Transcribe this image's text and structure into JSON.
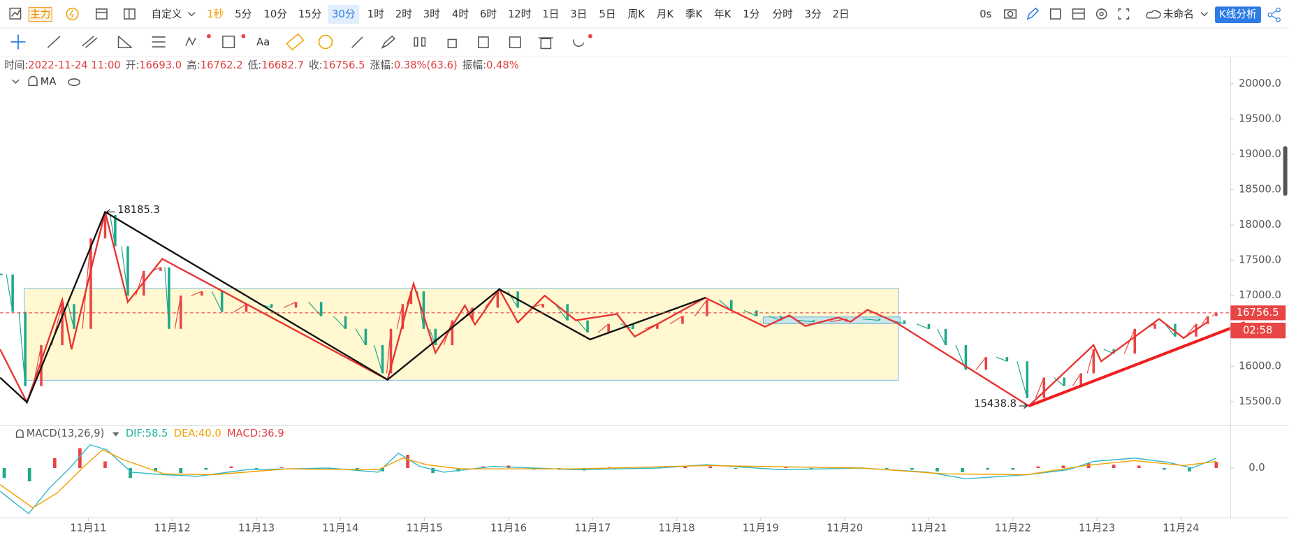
{
  "toolbar": {
    "main": "主力",
    "custom": "自定义",
    "intervals": [
      "1秒",
      "5分",
      "10分",
      "15分",
      "30分",
      "1时",
      "2时",
      "3时",
      "4时",
      "6时",
      "12时",
      "1日",
      "3日",
      "5日",
      "周K",
      "月K",
      "季K",
      "年K",
      "1分",
      "分时",
      "3分",
      "2日"
    ],
    "timer": "0s",
    "layout_name": "未命名",
    "analysis": "K线分析"
  },
  "drawing_toolbar": {
    "text_tool": "Aa"
  },
  "info": [
    {
      "label": "时间:",
      "value": "2022-11-24 11:00"
    },
    {
      "label": "开:",
      "value": "16693.0"
    },
    {
      "label": "高:",
      "value": "16762.2"
    },
    {
      "label": "低:",
      "value": "16682.7"
    },
    {
      "label": "收:",
      "value": "16756.5"
    },
    {
      "label": "涨幅:",
      "value": "0.38%(63.6)"
    },
    {
      "label": "振幅:",
      "value": "0.48%"
    }
  ],
  "indicator": "MA",
  "chart_data": [
    {
      "type": "candlestick",
      "up_color": "#e84545",
      "down_color": "#1fa88a",
      "xlim": [
        9.95,
        24.59
      ],
      "ylim": [
        15170,
        20370
      ],
      "xticks": [
        {
          "value": 11,
          "label": "11月11"
        },
        {
          "value": 12,
          "label": "11月12"
        },
        {
          "value": 13,
          "label": "11月13"
        },
        {
          "value": 14,
          "label": "11月14"
        },
        {
          "value": 15,
          "label": "11月15"
        },
        {
          "value": 16,
          "label": "11月16"
        },
        {
          "value": 17,
          "label": "11月17"
        },
        {
          "value": 18,
          "label": "11月18"
        },
        {
          "value": 19,
          "label": "11月19"
        },
        {
          "value": 20,
          "label": "11月20"
        },
        {
          "value": 21,
          "label": "11月21"
        },
        {
          "value": 22,
          "label": "11月22"
        },
        {
          "value": 23,
          "label": "11月23"
        },
        {
          "value": 24,
          "label": "11月24"
        }
      ],
      "yticks": [
        {
          "value": 15500,
          "label": "15500.0"
        },
        {
          "value": 16000,
          "label": "16000.0"
        },
        {
          "value": 16500,
          "label": "16500.0"
        },
        {
          "value": 17000,
          "label": "17000.0"
        },
        {
          "value": 17500,
          "label": "17500.0"
        },
        {
          "value": 18000,
          "label": "18000.0"
        },
        {
          "value": 18500,
          "label": "18500.0"
        },
        {
          "value": 19000,
          "label": "19000.0"
        },
        {
          "value": 19500,
          "label": "19500.0"
        },
        {
          "value": 20000,
          "label": "20000.0"
        }
      ],
      "x": [
        9.95,
        10.1,
        10.25,
        10.44,
        10.69,
        10.83,
        11.03,
        11.2,
        11.32,
        11.47,
        11.66,
        11.86,
        11.96,
        12.1,
        12.35,
        12.59,
        12.88,
        13.18,
        13.47,
        13.77,
        14.06,
        14.3,
        14.5,
        14.6,
        14.74,
        14.84,
        14.99,
        15.13,
        15.33,
        15.57,
        15.87,
        16.11,
        16.41,
        16.7,
        16.94,
        17.19,
        17.48,
        17.77,
        18.07,
        18.36,
        18.65,
        18.95,
        19.24,
        19.63,
        20.02,
        20.41,
        20.71,
        21.0,
        21.2,
        21.44,
        21.68,
        21.93,
        22.17,
        22.37,
        22.61,
        22.81,
        22.96,
        23.2,
        23.45,
        23.69,
        23.93,
        24.18,
        24.32,
        24.42
      ],
      "values": [
        17300,
        16770,
        15720,
        16300,
        16880,
        16530,
        17810,
        18140,
        17700,
        17000,
        17350,
        17400,
        16530,
        17000,
        17060,
        16770,
        16880,
        16830,
        16910,
        16710,
        16530,
        16300,
        15900,
        16530,
        16880,
        17060,
        16530,
        16300,
        16650,
        16830,
        17060,
        16830,
        16880,
        16650,
        16480,
        16600,
        16530,
        16600,
        16710,
        16940,
        16790,
        16710,
        16650,
        16630,
        16670,
        16650,
        16600,
        16530,
        16300,
        15950,
        16130,
        16070,
        15550,
        15840,
        15720,
        15900,
        16240,
        16180,
        16530,
        16600,
        16420,
        16600,
        16710,
        16756.5
      ],
      "lines": [
        {
          "color": "#e8332f",
          "x": [
            9.95,
            10.27,
            10.69,
            10.8,
            11.2,
            11.47,
            11.88,
            14.56,
            14.87,
            15.13,
            15.48,
            15.6,
            15.89,
            16.11,
            16.43,
            16.8,
            17.29,
            17.5,
            18.34,
            19.05,
            19.34,
            19.53,
            19.92,
            20.07,
            20.27,
            20.61,
            22.19,
            22.96,
            23.05,
            23.74,
            24.03,
            24.32
          ],
          "values": [
            16240,
            15490,
            16940,
            16240,
            18185.3,
            16910,
            17520,
            15810,
            17170,
            16190,
            16860,
            16590,
            17090,
            16620,
            17000,
            16650,
            16740,
            16420,
            16970,
            16560,
            16720,
            16570,
            16690,
            16630,
            16800,
            16620,
            15438.8,
            16300,
            16070,
            16670,
            16400,
            16630
          ]
        },
        {
          "color": "#111111",
          "x": [
            9.95,
            10.27,
            11.2,
            14.56,
            15.89,
            16.97,
            18.34
          ],
          "values": [
            15840,
            15490,
            18185.3,
            15810,
            17090,
            16380,
            16970
          ]
        }
      ],
      "trend_line": {
        "color": "#f01e1e",
        "x": [
          22.19,
          24.76
        ],
        "values": [
          15438.8,
          16616
        ]
      },
      "boxes": [
        {
          "fill": "#fff7c8",
          "stroke": "#8ec8e8",
          "x": [
            10.24,
            20.64
          ],
          "values": [
            17105,
            15802
          ]
        },
        {
          "fill": "#bfe3f0",
          "stroke": "#6bb6d8",
          "x": [
            19.03,
            20.66
          ],
          "values": [
            16698,
            16605
          ]
        }
      ],
      "annotations": [
        {
          "x": 11.2,
          "value": 18185.3
        },
        {
          "x": 22.19,
          "value": 15438.8
        }
      ],
      "last_price": 16756.5,
      "countdown": "02:58"
    },
    {
      "type": "macd",
      "title": "MACD(13,26,9)",
      "legend_labels": [
        "DIF:58.5",
        "DEA:40.0",
        "MACD:36.9"
      ],
      "legend_colors": [
        "#1fb59a",
        "#f0a000",
        "#e03c3c"
      ],
      "xlim": [
        9.95,
        24.59
      ],
      "ylim": [
        -300,
        250
      ],
      "yticks": [
        {
          "value": 0,
          "label": "0.0"
        }
      ],
      "series": [
        {
          "color": "#33b8c8",
          "x": [
            9.95,
            10.29,
            10.53,
            10.78,
            11.02,
            11.22,
            11.51,
            11.9,
            12.3,
            12.88,
            13.86,
            14.45,
            14.69,
            14.94,
            15.23,
            15.82,
            16.8,
            17.77,
            18.36,
            19.24,
            20.21,
            20.99,
            21.44,
            22.17,
            22.66,
            22.96,
            23.45,
            23.84,
            24.13,
            24.42
          ],
          "values": [
            -140,
            -275,
            -125,
            0,
            140,
            110,
            -25,
            -40,
            -50,
            -10,
            0,
            -25,
            90,
            10,
            -25,
            10,
            -10,
            0,
            20,
            -10,
            0,
            -25,
            -65,
            -40,
            -10,
            40,
            60,
            35,
            0,
            58.5
          ]
        },
        {
          "color": "#f0a000",
          "x": [
            9.95,
            10.34,
            10.63,
            10.93,
            11.17,
            11.42,
            11.9,
            12.49,
            13.37,
            14.45,
            14.74,
            15.03,
            15.43,
            16.8,
            18.36,
            20.21,
            21.19,
            22.17,
            22.86,
            23.45,
            24.03,
            24.42
          ],
          "values": [
            -100,
            -240,
            -150,
            0,
            110,
            50,
            -35,
            -40,
            -5,
            -10,
            60,
            20,
            -5,
            -5,
            15,
            0,
            -35,
            -40,
            15,
            45,
            15,
            40
          ]
        }
      ],
      "histogram": {
        "up_color": "#e84545",
        "down_color": "#1fa88a",
        "x": [
          10.0,
          10.3,
          10.6,
          10.9,
          11.2,
          11.5,
          11.8,
          12.1,
          12.4,
          12.7,
          13.0,
          13.3,
          13.6,
          13.9,
          14.2,
          14.5,
          14.8,
          15.1,
          15.4,
          15.7,
          16.0,
          16.3,
          16.6,
          16.9,
          17.2,
          17.5,
          17.8,
          18.1,
          18.4,
          18.7,
          19.0,
          19.3,
          19.6,
          19.9,
          20.2,
          20.5,
          20.8,
          21.1,
          21.4,
          21.7,
          22.0,
          22.3,
          22.6,
          22.9,
          23.2,
          23.5,
          23.8,
          24.1,
          24.42
        ],
        "values": [
          -60,
          -80,
          60,
          120,
          40,
          -60,
          -20,
          -30,
          -10,
          10,
          -5,
          5,
          -5,
          -10,
          -15,
          -20,
          80,
          -30,
          -20,
          10,
          15,
          -10,
          -10,
          -15,
          5,
          -5,
          5,
          10,
          10,
          -5,
          -5,
          5,
          -5,
          5,
          -5,
          -5,
          -10,
          -20,
          -25,
          -10,
          -10,
          10,
          15,
          30,
          20,
          15,
          -10,
          -20,
          36.9
        ]
      }
    }
  ]
}
